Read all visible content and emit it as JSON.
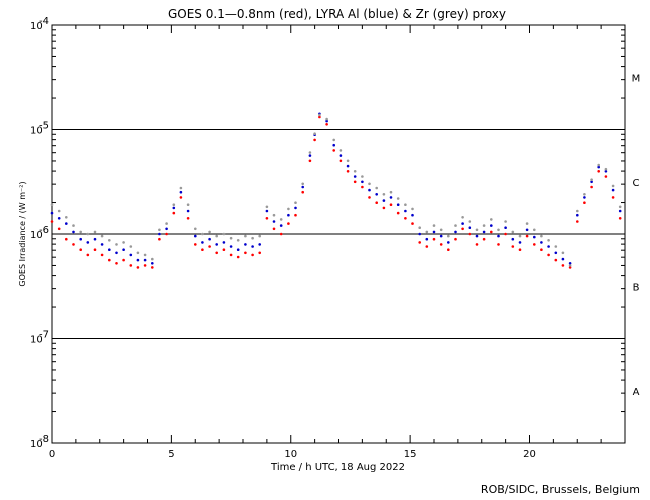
{
  "chart_data": {
    "type": "scatter",
    "title": "GOES 0.1—0.8nm (red), LYRA Al (blue) & Zr (grey) proxy",
    "xlabel": "Time / h UTC, 18 Aug 2022",
    "ylabel": "GOES Irradiance / (W m⁻²)",
    "credit": "ROB/SIDC, Brussels, Belgium",
    "xlim": [
      0,
      24
    ],
    "ylim_log10": [
      -8,
      -4
    ],
    "y_scale": "log",
    "x_ticks": [
      {
        "value": 0,
        "label": "0"
      },
      {
        "value": 5,
        "label": "5"
      },
      {
        "value": 10,
        "label": "10"
      },
      {
        "value": 15,
        "label": "15"
      },
      {
        "value": 20,
        "label": "20"
      }
    ],
    "x_minor_step": 1,
    "y_ticks": [
      {
        "exp": -8,
        "label_base": "10",
        "label_exp": "-8"
      },
      {
        "exp": -7,
        "label_base": "10",
        "label_exp": "-7"
      },
      {
        "exp": -6,
        "label_base": "10",
        "label_exp": "-6"
      },
      {
        "exp": -5,
        "label_base": "10",
        "label_exp": "-5"
      },
      {
        "exp": -4,
        "label_base": "10",
        "label_exp": "-4"
      }
    ],
    "reference_lines_log10": [
      -7,
      -6,
      -5
    ],
    "flare_classes": [
      {
        "label": "A",
        "log10": -7.5
      },
      {
        "label": "B",
        "log10": -6.5
      },
      {
        "label": "C",
        "log10": -5.5
      },
      {
        "label": "M",
        "log10": -4.5
      }
    ],
    "series": [
      {
        "name": "GOES 0.1-0.8nm",
        "color": "#ff0000",
        "x": [
          0,
          0.3,
          0.6,
          0.9,
          1.2,
          1.5,
          1.8,
          2.1,
          2.4,
          2.7,
          3.0,
          3.3,
          3.6,
          3.9,
          4.2,
          4.5,
          4.8,
          5.1,
          5.4,
          5.7,
          6.0,
          6.3,
          6.6,
          6.9,
          7.2,
          7.5,
          7.8,
          8.1,
          8.4,
          8.7,
          9.0,
          9.3,
          9.6,
          9.9,
          10.2,
          10.5,
          10.8,
          11.0,
          11.2,
          11.5,
          11.8,
          12.1,
          12.4,
          12.7,
          13.0,
          13.3,
          13.6,
          13.9,
          14.2,
          14.5,
          14.8,
          15.1,
          15.4,
          15.7,
          16.0,
          16.3,
          16.6,
          16.9,
          17.2,
          17.5,
          17.8,
          18.1,
          18.4,
          18.7,
          19.0,
          19.3,
          19.6,
          19.9,
          20.2,
          20.5,
          20.8,
          21.1,
          21.4,
          21.7,
          22.0,
          22.3,
          22.6,
          22.9,
          23.2,
          23.5,
          23.8
        ],
        "log10": [
          -5.88,
          -5.95,
          -6.05,
          -6.1,
          -6.15,
          -6.2,
          -6.15,
          -6.2,
          -6.25,
          -6.28,
          -6.25,
          -6.3,
          -6.32,
          -6.3,
          -6.32,
          -6.05,
          -6.0,
          -5.8,
          -5.65,
          -5.85,
          -6.1,
          -6.15,
          -6.12,
          -6.18,
          -6.15,
          -6.2,
          -6.22,
          -6.18,
          -6.2,
          -6.18,
          -5.85,
          -5.95,
          -6.0,
          -5.9,
          -5.82,
          -5.6,
          -5.3,
          -5.1,
          -4.88,
          -4.95,
          -5.2,
          -5.3,
          -5.4,
          -5.5,
          -5.55,
          -5.65,
          -5.7,
          -5.75,
          -5.72,
          -5.8,
          -5.85,
          -5.9,
          -6.08,
          -6.12,
          -6.05,
          -6.1,
          -6.15,
          -6.05,
          -5.95,
          -6.0,
          -6.1,
          -6.05,
          -5.98,
          -6.1,
          -6.0,
          -6.12,
          -6.15,
          -6.02,
          -6.1,
          -6.15,
          -6.2,
          -6.25,
          -6.3,
          -6.32,
          -5.88,
          -5.7,
          -5.55,
          -5.4,
          -5.45,
          -5.65,
          -5.85
        ]
      },
      {
        "name": "LYRA Al proxy",
        "color": "#0000cc",
        "x": [
          0,
          0.3,
          0.6,
          0.9,
          1.2,
          1.5,
          1.8,
          2.1,
          2.4,
          2.7,
          3.0,
          3.3,
          3.6,
          3.9,
          4.2,
          4.5,
          4.8,
          5.1,
          5.4,
          5.7,
          6.0,
          6.3,
          6.6,
          6.9,
          7.2,
          7.5,
          7.8,
          8.1,
          8.4,
          8.7,
          9.0,
          9.3,
          9.6,
          9.9,
          10.2,
          10.5,
          10.8,
          11.0,
          11.2,
          11.5,
          11.8,
          12.1,
          12.4,
          12.7,
          13.0,
          13.3,
          13.6,
          13.9,
          14.2,
          14.5,
          14.8,
          15.1,
          15.4,
          15.7,
          16.0,
          16.3,
          16.6,
          16.9,
          17.2,
          17.5,
          17.8,
          18.1,
          18.4,
          18.7,
          19.0,
          19.3,
          19.6,
          19.9,
          20.2,
          20.5,
          20.8,
          21.1,
          21.4,
          21.7,
          22.0,
          22.3,
          22.6,
          22.9,
          23.2,
          23.5,
          23.8
        ],
        "log10": [
          -5.8,
          -5.85,
          -5.9,
          -5.98,
          -6.05,
          -6.08,
          -6.05,
          -6.1,
          -6.15,
          -6.18,
          -6.15,
          -6.2,
          -6.25,
          -6.25,
          -6.28,
          -6.0,
          -5.95,
          -5.75,
          -5.6,
          -5.78,
          -6.02,
          -6.08,
          -6.05,
          -6.1,
          -6.08,
          -6.12,
          -6.15,
          -6.1,
          -6.12,
          -6.1,
          -5.78,
          -5.88,
          -5.92,
          -5.82,
          -5.75,
          -5.55,
          -5.25,
          -5.05,
          -4.85,
          -4.92,
          -5.15,
          -5.25,
          -5.35,
          -5.45,
          -5.5,
          -5.58,
          -5.62,
          -5.68,
          -5.65,
          -5.72,
          -5.78,
          -5.82,
          -6.0,
          -6.05,
          -5.98,
          -6.02,
          -6.08,
          -5.98,
          -5.9,
          -5.94,
          -6.02,
          -5.98,
          -5.92,
          -6.02,
          -5.94,
          -6.05,
          -6.08,
          -5.96,
          -6.03,
          -6.08,
          -6.12,
          -6.18,
          -6.24,
          -6.28,
          -5.82,
          -5.65,
          -5.5,
          -5.36,
          -5.4,
          -5.58,
          -5.78
        ]
      },
      {
        "name": "LYRA Zr proxy",
        "color": "#999999",
        "x": [
          0,
          0.3,
          0.6,
          0.9,
          1.2,
          1.5,
          1.8,
          2.1,
          2.4,
          2.7,
          3.0,
          3.3,
          3.6,
          3.9,
          4.2,
          4.5,
          4.8,
          5.1,
          5.4,
          5.7,
          6.0,
          6.3,
          6.6,
          6.9,
          7.2,
          7.5,
          7.8,
          8.1,
          8.4,
          8.7,
          9.0,
          9.3,
          9.6,
          9.9,
          10.2,
          10.5,
          10.8,
          11.0,
          11.2,
          11.5,
          11.8,
          12.1,
          12.4,
          12.7,
          13.0,
          13.3,
          13.6,
          13.9,
          14.2,
          14.5,
          14.8,
          15.1,
          15.4,
          15.7,
          16.0,
          16.3,
          16.6,
          16.9,
          17.2,
          17.5,
          17.8,
          18.1,
          18.4,
          18.7,
          19.0,
          19.3,
          19.6,
          19.9,
          20.2,
          20.5,
          20.8,
          21.1,
          21.4,
          21.7,
          22.0,
          22.3,
          22.6,
          22.9,
          23.2,
          23.5,
          23.8
        ],
        "log10": [
          -5.72,
          -5.78,
          -5.84,
          -5.92,
          -5.98,
          -6.0,
          -5.98,
          -6.02,
          -6.06,
          -6.1,
          -6.08,
          -6.12,
          -6.18,
          -6.2,
          -6.24,
          -5.96,
          -5.9,
          -5.72,
          -5.56,
          -5.72,
          -5.95,
          -6.0,
          -5.98,
          -6.02,
          -6.0,
          -6.04,
          -6.06,
          -6.02,
          -6.04,
          -6.02,
          -5.74,
          -5.82,
          -5.86,
          -5.76,
          -5.7,
          -5.52,
          -5.22,
          -5.04,
          -4.86,
          -4.9,
          -5.1,
          -5.2,
          -5.3,
          -5.4,
          -5.45,
          -5.52,
          -5.56,
          -5.62,
          -5.6,
          -5.66,
          -5.72,
          -5.76,
          -5.94,
          -5.98,
          -5.92,
          -5.96,
          -6.02,
          -5.92,
          -5.84,
          -5.88,
          -5.96,
          -5.92,
          -5.86,
          -5.96,
          -5.88,
          -5.98,
          -6.02,
          -5.9,
          -5.96,
          -6.02,
          -6.06,
          -6.12,
          -6.18,
          -6.3,
          -5.78,
          -5.62,
          -5.48,
          -5.34,
          -5.38,
          -5.54,
          -5.74
        ]
      }
    ]
  }
}
